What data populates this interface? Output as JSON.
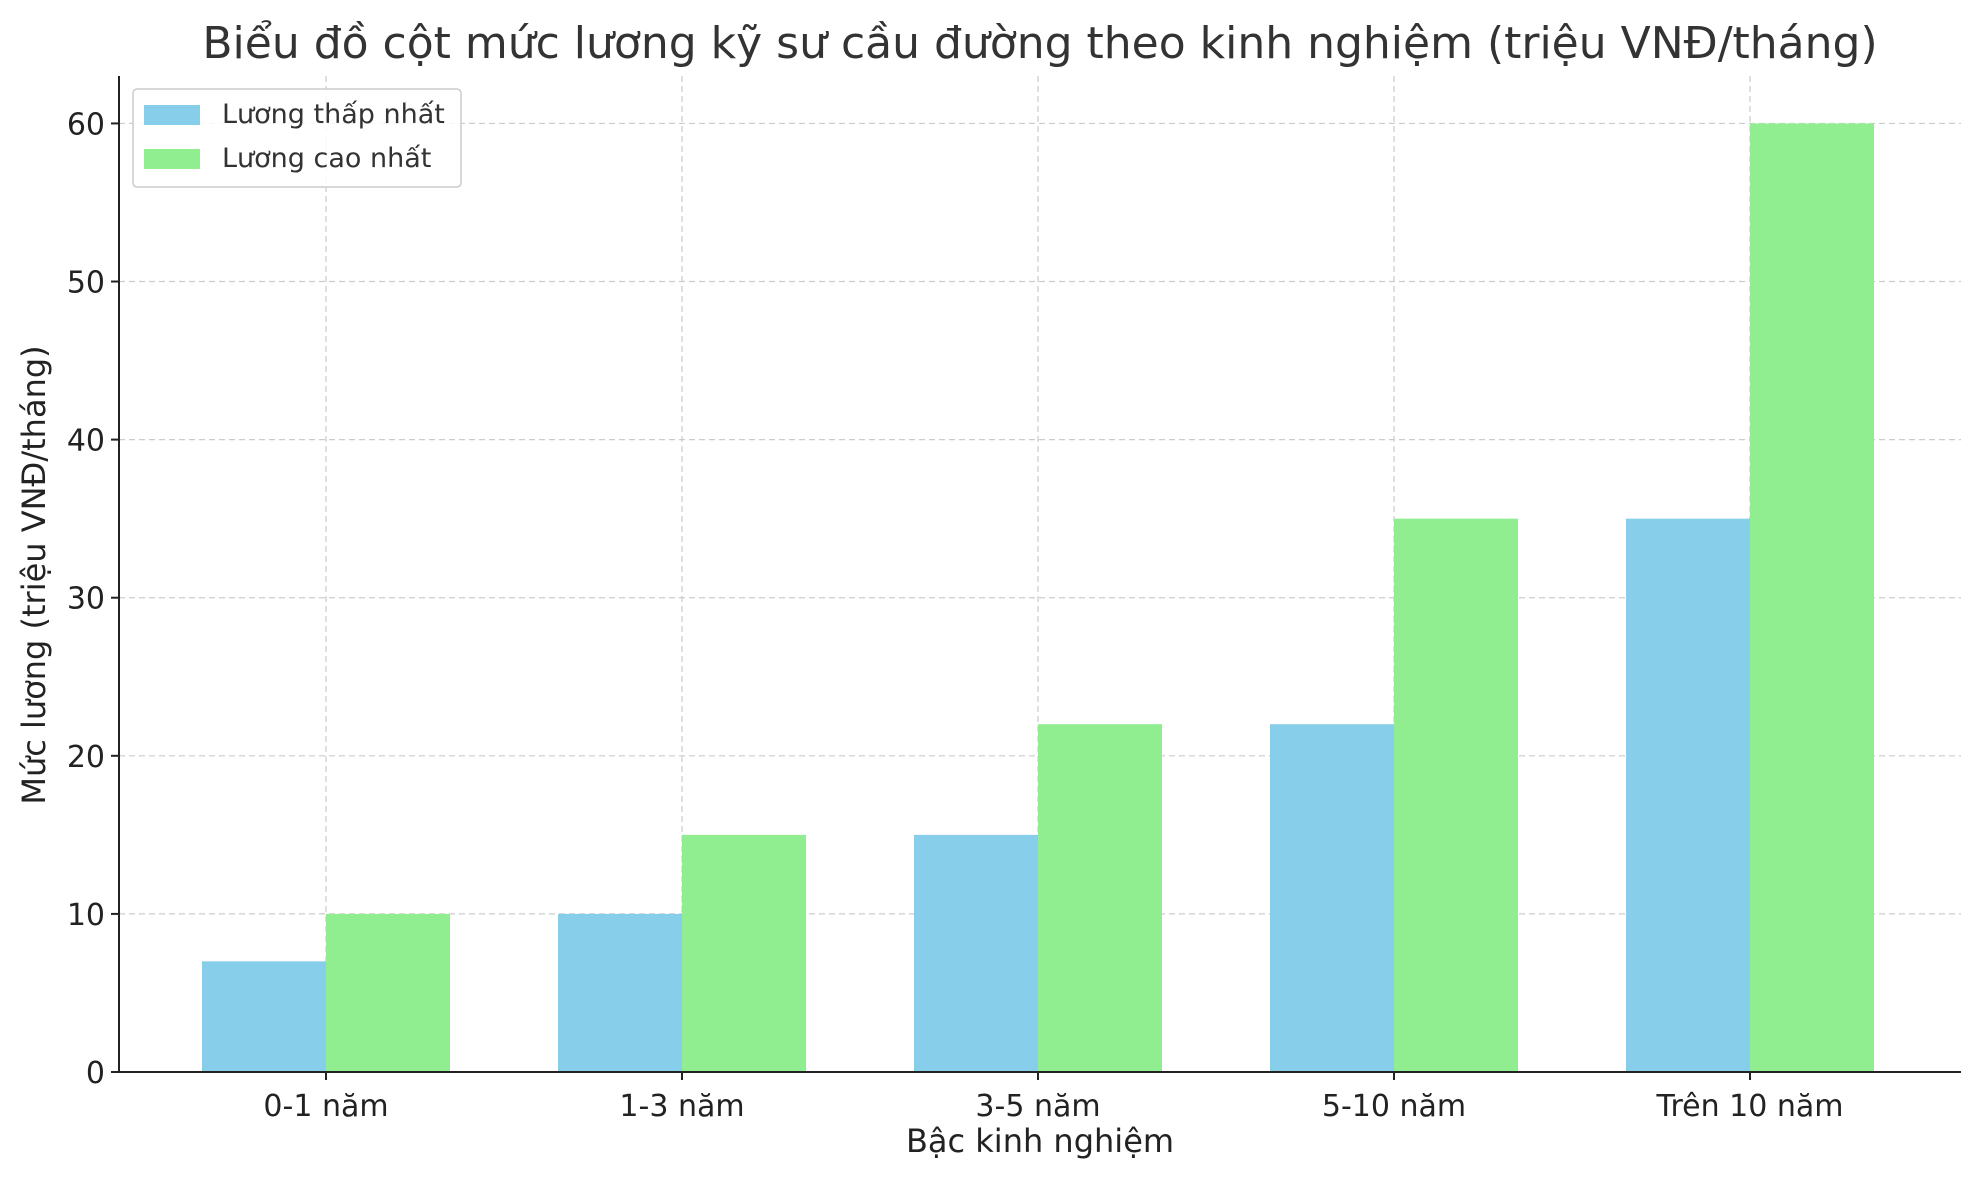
{
  "chart_data": {
    "type": "bar",
    "title": "Biểu đồ cột mức lương kỹ sư cầu đường theo kinh nghiệm (triệu VNĐ/tháng)",
    "xlabel": "Bậc kinh nghiệm",
    "ylabel": "Mức lương (triệu VNĐ/tháng)",
    "categories": [
      "0-1 năm",
      "1-3 năm",
      "3-5 năm",
      "5-10 năm",
      "Trên 10 năm"
    ],
    "series": [
      {
        "name": "Lương thấp nhất",
        "values": [
          7,
          10,
          15,
          22,
          35
        ],
        "color": "#87ceeb"
      },
      {
        "name": "Lương cao nhất",
        "values": [
          10,
          15,
          22,
          35,
          60
        ],
        "color": "#90ee90"
      }
    ],
    "ylim": [
      0,
      63
    ],
    "yticks": [
      0,
      10,
      20,
      30,
      40,
      50,
      60
    ],
    "grid": true,
    "legend_position": "top-left"
  }
}
